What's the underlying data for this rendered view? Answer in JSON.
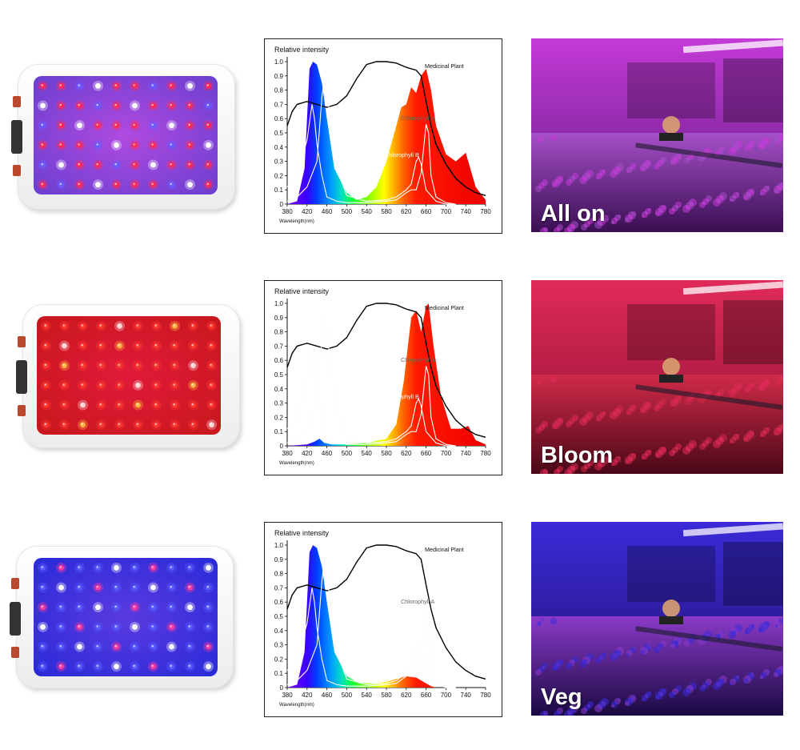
{
  "panels": [
    {
      "mode_label": "All on",
      "face_color": "#6a3fd0",
      "glow_color": "#b04ae0",
      "led_colors": [
        "#ff2a55",
        "#ff2a55",
        "#6a5cff",
        "#ffffff",
        "#ff2a55",
        "#ff2a55",
        "#6a5cff",
        "#ff2a55",
        "#ffffff",
        "#ff2a55"
      ],
      "chart_data": {
        "type": "area",
        "title": "Relative intensity",
        "xlabel": "Wavelength(nm)",
        "xlim": [
          380,
          780
        ],
        "ylim": [
          0,
          1.0
        ],
        "xticks": [
          "380",
          "420",
          "460",
          "500",
          "540",
          "580",
          "620",
          "660",
          "700",
          "740",
          "780"
        ],
        "yticks": [
          "0",
          "0.1",
          "0.2",
          "0.3",
          "0.4",
          "0.5",
          "0.6",
          "0.7",
          "0.8",
          "0.9",
          "1.0"
        ],
        "annotations": [
          "Medicinal Plant",
          "Chlorophyll A",
          "Chlorophyll B"
        ],
        "series": [
          {
            "name": "LED spectrum",
            "x": [
              380,
              400,
              415,
              425,
              432,
              440,
              450,
              460,
              475,
              500,
              520,
              540,
              560,
              580,
              600,
              610,
              620,
              630,
              640,
              650,
              660,
              670,
              680,
              700,
              720,
              740,
              760,
              780
            ],
            "values": [
              0,
              0.02,
              0.25,
              0.95,
              1.0,
              0.98,
              0.85,
              0.6,
              0.25,
              0.08,
              0.03,
              0.05,
              0.12,
              0.3,
              0.55,
              0.68,
              0.7,
              0.82,
              0.78,
              0.9,
              0.95,
              0.8,
              0.55,
              0.35,
              0.3,
              0.36,
              0.12,
              0.03
            ]
          },
          {
            "name": "Medicinal Plant",
            "x": [
              380,
              390,
              400,
              420,
              440,
              460,
              480,
              500,
              520,
              540,
              560,
              580,
              600,
              620,
              640,
              650,
              660,
              670,
              680,
              700,
              720,
              740,
              760,
              780
            ],
            "values": [
              0.55,
              0.65,
              0.7,
              0.72,
              0.7,
              0.68,
              0.7,
              0.76,
              0.88,
              0.98,
              1.0,
              1.0,
              0.99,
              0.96,
              0.94,
              0.9,
              0.72,
              0.55,
              0.42,
              0.28,
              0.18,
              0.12,
              0.08,
              0.06
            ]
          },
          {
            "name": "Chlorophyll A",
            "x": [
              380,
              400,
              420,
              430,
              435,
              440,
              450,
              460,
              480,
              500,
              540,
              580,
              600,
              620,
              630,
              640,
              650,
              660,
              665,
              670,
              680,
              700,
              720
            ],
            "values": [
              0.12,
              0.2,
              0.45,
              0.7,
              0.6,
              0.42,
              0.2,
              0.05,
              0.02,
              0.01,
              0.01,
              0.02,
              0.03,
              0.08,
              0.1,
              0.1,
              0.22,
              0.56,
              0.5,
              0.2,
              0.05,
              0.01,
              0
            ]
          },
          {
            "name": "Chlorophyll B",
            "x": [
              380,
              400,
              420,
              440,
              450,
              455,
              460,
              470,
              480,
              500,
              540,
              580,
              600,
              620,
              630,
              640,
              645,
              650,
              660,
              680,
              700,
              720
            ],
            "values": [
              0.02,
              0.05,
              0.12,
              0.3,
              0.75,
              0.9,
              0.8,
              0.5,
              0.25,
              0.06,
              0.02,
              0.03,
              0.05,
              0.1,
              0.14,
              0.3,
              0.33,
              0.28,
              0.1,
              0.02,
              0,
              0
            ]
          }
        ]
      }
    },
    {
      "mode_label": "Bloom",
      "face_color": "#c8171c",
      "glow_color": "#e01a3a",
      "led_colors": [
        "#ff3a30",
        "#ff3a30",
        "#ff3a30",
        "#ff3a30",
        "#ffd2d2",
        "#ff3a30",
        "#ff3a30",
        "#ffb040",
        "#ff3a30",
        "#ff3a30"
      ],
      "chart_data": {
        "type": "area",
        "title": "Relative intensity",
        "xlabel": "Wavelength(nm)",
        "xlim": [
          380,
          780
        ],
        "ylim": [
          0,
          1.0
        ],
        "xticks": [
          "380",
          "420",
          "460",
          "500",
          "540",
          "580",
          "620",
          "660",
          "700",
          "740",
          "780"
        ],
        "yticks": [
          "0",
          "0.1",
          "0.2",
          "0.3",
          "0.4",
          "0.5",
          "0.6",
          "0.7",
          "0.8",
          "0.9",
          "1.0"
        ],
        "annotations": [
          "Medicinal Plant",
          "Chlorophyll A",
          "Chlorophyll B"
        ],
        "series": [
          {
            "name": "LED spectrum",
            "x": [
              380,
              420,
              435,
              445,
              455,
              470,
              500,
              540,
              580,
              600,
              615,
              630,
              640,
              650,
              660,
              665,
              675,
              690,
              710,
              730,
              745,
              760,
              780
            ],
            "values": [
              0,
              0.01,
              0.03,
              0.05,
              0.02,
              0.01,
              0.01,
              0.02,
              0.05,
              0.15,
              0.45,
              0.9,
              0.95,
              0.8,
              0.98,
              1.0,
              0.7,
              0.35,
              0.12,
              0.12,
              0.14,
              0.04,
              0.01
            ]
          },
          {
            "name": "Medicinal Plant",
            "x": [
              380,
              390,
              400,
              420,
              440,
              460,
              480,
              500,
              520,
              540,
              560,
              580,
              600,
              620,
              640,
              650,
              660,
              670,
              680,
              700,
              720,
              740,
              760,
              780
            ],
            "values": [
              0.55,
              0.65,
              0.7,
              0.72,
              0.7,
              0.68,
              0.7,
              0.76,
              0.88,
              0.98,
              1.0,
              1.0,
              0.99,
              0.96,
              0.94,
              0.9,
              0.72,
              0.55,
              0.42,
              0.28,
              0.18,
              0.12,
              0.08,
              0.06
            ]
          },
          {
            "name": "Chlorophyll A",
            "x": [
              380,
              400,
              420,
              430,
              435,
              440,
              450,
              460,
              480,
              500,
              540,
              580,
              600,
              620,
              630,
              640,
              650,
              660,
              665,
              670,
              680,
              700,
              720
            ],
            "values": [
              0.12,
              0.2,
              0.45,
              0.7,
              0.6,
              0.42,
              0.2,
              0.05,
              0.02,
              0.01,
              0.01,
              0.02,
              0.03,
              0.08,
              0.1,
              0.1,
              0.22,
              0.56,
              0.5,
              0.2,
              0.05,
              0.01,
              0
            ]
          },
          {
            "name": "Chlorophyll B",
            "x": [
              380,
              400,
              420,
              440,
              450,
              455,
              460,
              470,
              480,
              500,
              540,
              580,
              600,
              620,
              630,
              640,
              645,
              650,
              660,
              680,
              700,
              720
            ],
            "values": [
              0.02,
              0.05,
              0.12,
              0.3,
              0.75,
              0.9,
              0.8,
              0.5,
              0.25,
              0.06,
              0.02,
              0.03,
              0.05,
              0.1,
              0.14,
              0.3,
              0.33,
              0.28,
              0.1,
              0.02,
              0,
              0
            ]
          }
        ]
      }
    },
    {
      "mode_label": "Veg",
      "face_color": "#2a2ad8",
      "glow_color": "#5a3ae0",
      "led_colors": [
        "#5a5cff",
        "#ff3aa0",
        "#5a5cff",
        "#5a5cff",
        "#ffffff",
        "#5a5cff",
        "#ff3aa0",
        "#5a5cff",
        "#5a5cff",
        "#ffffff"
      ],
      "chart_data": {
        "type": "area",
        "title": "Relative intensity",
        "xlabel": "Wavelength(nm)",
        "xlim": [
          380,
          780
        ],
        "ylim": [
          0,
          1.0
        ],
        "xticks": [
          "380",
          "420",
          "460",
          "500",
          "540",
          "580",
          "620",
          "660",
          "700",
          "740",
          "780"
        ],
        "yticks": [
          "0",
          "0.1",
          "0.2",
          "0.3",
          "0.4",
          "0.5",
          "0.6",
          "0.7",
          "0.8",
          "0.9",
          "1.0"
        ],
        "annotations": [
          "Medicinal Plant",
          "Chlorophyll A"
        ],
        "series": [
          {
            "name": "LED spectrum",
            "x": [
              380,
              400,
              415,
              425,
              432,
              440,
              450,
              460,
              475,
              500,
              520,
              540,
              560,
              580,
              600,
              620,
              640,
              650,
              660,
              670,
              680,
              700,
              780
            ],
            "values": [
              0,
              0.02,
              0.25,
              0.95,
              1.0,
              0.98,
              0.85,
              0.6,
              0.25,
              0.08,
              0.04,
              0.03,
              0.03,
              0.04,
              0.06,
              0.08,
              0.07,
              0.05,
              0.03,
              0.01,
              0,
              0,
              0
            ]
          },
          {
            "name": "Medicinal Plant",
            "x": [
              380,
              390,
              400,
              420,
              440,
              460,
              480,
              500,
              520,
              540,
              560,
              580,
              600,
              620,
              640,
              650,
              660,
              670,
              680,
              700,
              720,
              740,
              760,
              780
            ],
            "values": [
              0.55,
              0.65,
              0.7,
              0.72,
              0.7,
              0.68,
              0.7,
              0.76,
              0.88,
              0.98,
              1.0,
              1.0,
              0.99,
              0.96,
              0.94,
              0.9,
              0.72,
              0.55,
              0.42,
              0.28,
              0.18,
              0.12,
              0.08,
              0.06
            ]
          },
          {
            "name": "Chlorophyll A",
            "x": [
              380,
              400,
              420,
              430,
              435,
              440,
              450,
              460,
              480,
              500,
              540,
              580,
              600,
              620,
              630,
              640,
              650,
              660,
              665,
              670,
              680,
              700,
              720
            ],
            "values": [
              0.12,
              0.2,
              0.45,
              0.7,
              0.6,
              0.42,
              0.2,
              0.05,
              0.02,
              0.01,
              0.01,
              0.02,
              0.03,
              0.08,
              0.1,
              0.1,
              0.22,
              0.56,
              0.5,
              0.2,
              0.05,
              0.01,
              0
            ]
          },
          {
            "name": "Chlorophyll B",
            "x": [
              380,
              400,
              420,
              440,
              450,
              455,
              460,
              470,
              480,
              500,
              540,
              580,
              600,
              620,
              630,
              640,
              645,
              650,
              660,
              680,
              700,
              720
            ],
            "values": [
              0.02,
              0.05,
              0.12,
              0.3,
              0.75,
              0.9,
              0.8,
              0.5,
              0.25,
              0.06,
              0.02,
              0.03,
              0.05,
              0.1,
              0.14,
              0.3,
              0.33,
              0.28,
              0.1,
              0.02,
              0,
              0
            ]
          }
        ]
      }
    }
  ]
}
